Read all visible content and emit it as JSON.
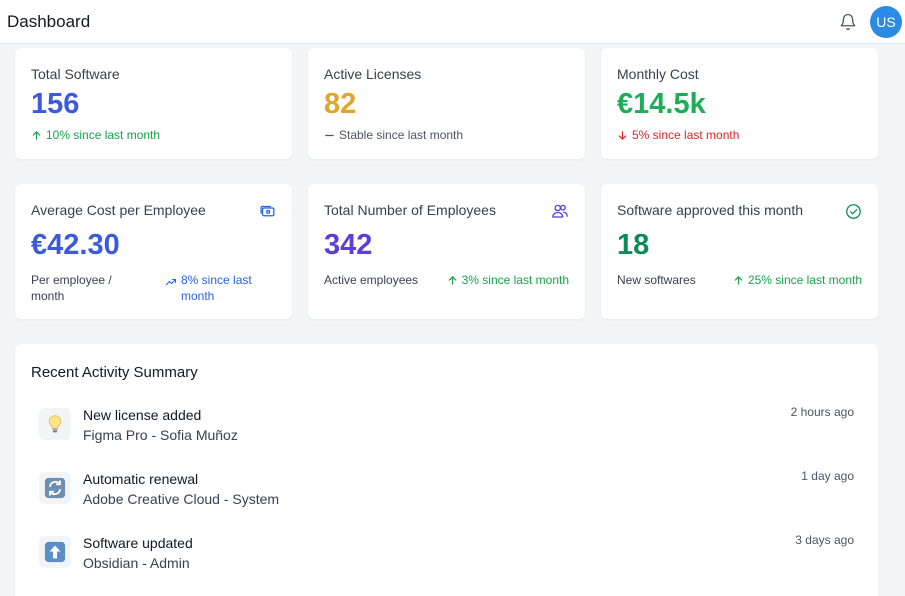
{
  "header": {
    "title": "Dashboard",
    "avatar_initials": "US"
  },
  "stats_row1": [
    {
      "label": "Total Software",
      "value": "156",
      "value_color": "#3b5bdb",
      "trend_icon": "arrow-up-icon",
      "trend_text": "10% since last month",
      "trend_color": "#16a34a"
    },
    {
      "label": "Active Licenses",
      "value": "82",
      "value_color": "#e0a52b",
      "trend_icon": "dash-icon",
      "trend_text": "Stable since last month",
      "trend_color": "#4b5563"
    },
    {
      "label": "Monthly Cost",
      "value": "€14.5k",
      "value_color": "#1fae58",
      "trend_icon": "arrow-down-icon",
      "trend_text": "5% since last month",
      "trend_color": "#dc2626"
    }
  ],
  "stats_row2": [
    {
      "label": "Average Cost per Employee",
      "icon": "money-icon",
      "value": "€42.30",
      "value_color": "#3b5bdb",
      "sub_text": "Per employee / month",
      "trend_icon": "trending-up-icon",
      "trend_text": "8% since last month",
      "trend_color": "#2563eb"
    },
    {
      "label": "Total Number of Employees",
      "icon": "users-icon",
      "value": "342",
      "value_color": "#5b3fd6",
      "sub_text": "Active employees",
      "trend_icon": "arrow-up-icon",
      "trend_text": "3% since last month",
      "trend_color": "#16a34a"
    },
    {
      "label": "Software approved this month",
      "icon": "check-circle-icon",
      "value": "18",
      "value_color": "#0f8a5a",
      "sub_text": "New softwares",
      "trend_icon": "arrow-up-icon",
      "trend_text": "25% since last month",
      "trend_color": "#16a34a"
    }
  ],
  "activity": {
    "title": "Recent Activity Summary",
    "items": [
      {
        "icon": "lightbulb-icon",
        "title": "New license added",
        "subtitle": "Figma Pro - Sofia Muñoz",
        "time": "2 hours ago"
      },
      {
        "icon": "refresh-icon",
        "title": "Automatic renewal",
        "subtitle": "Adobe Creative Cloud - System",
        "time": "1 day ago"
      },
      {
        "icon": "up-arrow-box-icon",
        "title": "Software updated",
        "subtitle": "Obsidian - Admin",
        "time": "3 days ago"
      }
    ]
  }
}
